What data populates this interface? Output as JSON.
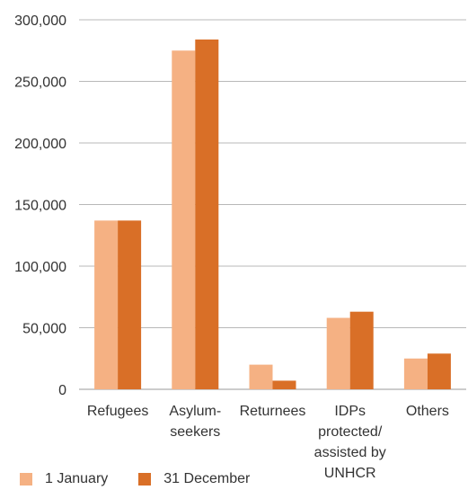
{
  "chart_data": {
    "type": "bar",
    "title": "",
    "xlabel": "",
    "ylabel": "",
    "categories": [
      [
        "Refugees"
      ],
      [
        "Asylum-",
        "seekers"
      ],
      [
        "Returnees"
      ],
      [
        "IDPs",
        "protected/",
        "assisted by",
        "UNHCR"
      ],
      [
        "Others"
      ]
    ],
    "series": [
      {
        "name": "1 January",
        "color": "#f5b183",
        "values": [
          137000,
          275000,
          20000,
          58000,
          25000
        ]
      },
      {
        "name": "31 December",
        "color": "#d96f27",
        "values": [
          137000,
          284000,
          7000,
          63000,
          29000
        ]
      }
    ],
    "ylim": [
      0,
      300000
    ],
    "yticks": [
      0,
      50000,
      100000,
      150000,
      200000,
      250000,
      300000
    ],
    "ytick_labels": [
      "0",
      "50,000",
      "100,000",
      "150,000",
      "200,000",
      "250,000",
      "300,000"
    ],
    "grid": true,
    "legend_position": "bottom-left"
  }
}
